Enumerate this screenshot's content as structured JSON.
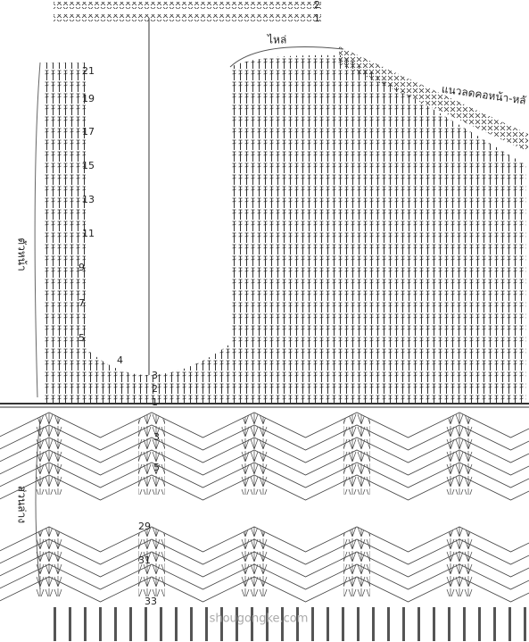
{
  "top_rows": [
    "2",
    "1"
  ],
  "left_rows": [
    "21",
    "19",
    "17",
    "15",
    "13",
    "11",
    "9",
    "7",
    "5",
    "4",
    "3",
    "2",
    "1"
  ],
  "lower_rows": [
    "3",
    "5",
    "29",
    "31",
    "33"
  ],
  "labels": {
    "shoulder": "ไหล่",
    "neckline": "แนวลดคอหน้า-หลั",
    "front": "ตัวหน้า",
    "lower": "ส่วนล่าง"
  },
  "watermark": "shougongke.com"
}
